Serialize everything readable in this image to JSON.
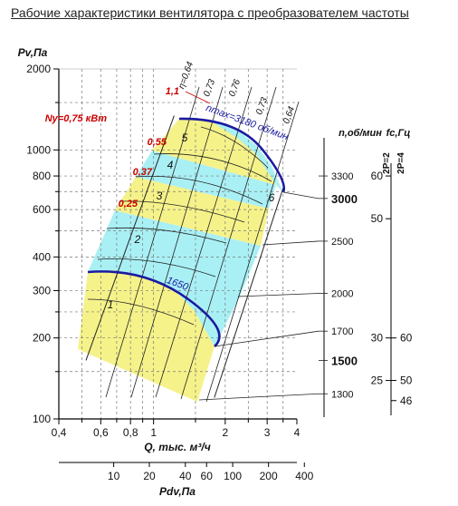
{
  "title": "Рабочие характеристики вентилятора с преобразователем частоты",
  "chart_data": {
    "type": "fan-performance",
    "xlabel": "Q, тыс. м³/ч",
    "ylabel": "Pv,Па",
    "x_scale": "log",
    "y_scale": "log",
    "xlim": [
      0.4,
      4
    ],
    "ylim": [
      100,
      2000
    ],
    "x_ticks": [
      {
        "v": 0.4,
        "label": "0,4"
      },
      {
        "v": 0.5,
        "label": ""
      },
      {
        "v": 0.6,
        "label": "0,6"
      },
      {
        "v": 0.7,
        "label": ""
      },
      {
        "v": 0.8,
        "label": "0,8"
      },
      {
        "v": 0.9,
        "label": ""
      },
      {
        "v": 1,
        "label": "1"
      },
      {
        "v": 1.5,
        "label": ""
      },
      {
        "v": 2,
        "label": "2"
      },
      {
        "v": 2.5,
        "label": ""
      },
      {
        "v": 3,
        "label": "3"
      },
      {
        "v": 3.5,
        "label": ""
      },
      {
        "v": 4,
        "label": "4"
      }
    ],
    "y_ticks": [
      {
        "v": 100,
        "label": "100"
      },
      {
        "v": 150,
        "label": ""
      },
      {
        "v": 200,
        "label": "200"
      },
      {
        "v": 250,
        "label": ""
      },
      {
        "v": 300,
        "label": "300"
      },
      {
        "v": 400,
        "label": "400"
      },
      {
        "v": 500,
        "label": ""
      },
      {
        "v": 600,
        "label": "600"
      },
      {
        "v": 700,
        "label": ""
      },
      {
        "v": 800,
        "label": "800"
      },
      {
        "v": 1000,
        "label": "1000"
      },
      {
        "v": 1500,
        "label": ""
      },
      {
        "v": 2000,
        "label": "2000"
      }
    ],
    "pdv_axis": {
      "label": "Pdv,Па",
      "ticks": [
        {
          "v": 10,
          "label": "10",
          "q": 0.68
        },
        {
          "v": 20,
          "label": "20",
          "q": 0.96
        },
        {
          "v": 40,
          "label": "40",
          "q": 1.36
        },
        {
          "v": 60,
          "label": "60",
          "q": 1.67
        },
        {
          "v": 100,
          "label": "100",
          "q": 2.15
        },
        {
          "v": 200,
          "label": "200",
          "q": 3.04
        },
        {
          "v": 400,
          "label": "400",
          "q": 4.3
        }
      ]
    },
    "rpm_axis": {
      "label": "n,об/мин",
      "ticks": [
        {
          "label": "3300",
          "p": 800,
          "major": false
        },
        {
          "label": "3000",
          "p": 660,
          "major": true
        },
        {
          "label": "2500",
          "p": 458,
          "major": false
        },
        {
          "label": "2000",
          "p": 293,
          "major": false
        },
        {
          "label": "1700",
          "p": 212,
          "major": false
        },
        {
          "label": "1500",
          "p": 165,
          "major": true
        },
        {
          "label": "1300",
          "p": 124,
          "major": false
        }
      ]
    },
    "freq_axis": {
      "label": "fc,Гц",
      "pole_labels": [
        "2P=2",
        "2P=4"
      ],
      "ticks_2p2": [
        {
          "label": "60",
          "p": 800
        },
        {
          "label": "50",
          "p": 555
        },
        {
          "label": "30",
          "p": 200
        },
        {
          "label": "25",
          "p": 139
        }
      ],
      "ticks_2p4": [
        {
          "label": "60",
          "p": 200
        },
        {
          "label": "50",
          "p": 139
        },
        {
          "label": "46",
          "p": 117
        }
      ]
    },
    "efficiency_labels": [
      "η=0,64",
      "0,73",
      "0,76",
      "0,73",
      "0,64"
    ],
    "power_labels": [
      "1,1",
      "Nу=0,75 кВт",
      "0,55",
      "0,37",
      "0,25"
    ],
    "speed_labels": {
      "max": "nmax=3180 об/мин",
      "min": "1650"
    },
    "operating_range": {
      "n_max": 3180,
      "n_min": 1650,
      "left_line": [
        [
          0.52,
          165
        ],
        [
          1.22,
          1340
        ]
      ],
      "right_line": [
        [
          1.8,
          120
        ],
        [
          3.5,
          720
        ]
      ]
    },
    "zones": [
      {
        "label": "1",
        "color": "#f5f28a"
      },
      {
        "label": "2",
        "color": "#a9f0f5"
      },
      {
        "label": "3",
        "color": "#f5f28a"
      },
      {
        "label": "4",
        "color": "#a9f0f5"
      },
      {
        "label": "5",
        "color": "#f5f28a"
      },
      {
        "label": "6",
        "color": "#a9f0f5"
      }
    ],
    "colors": {
      "grid": "#777777",
      "boundary": "#1a1aa0",
      "power_label": "#cc0000",
      "curve": "#222222"
    }
  }
}
